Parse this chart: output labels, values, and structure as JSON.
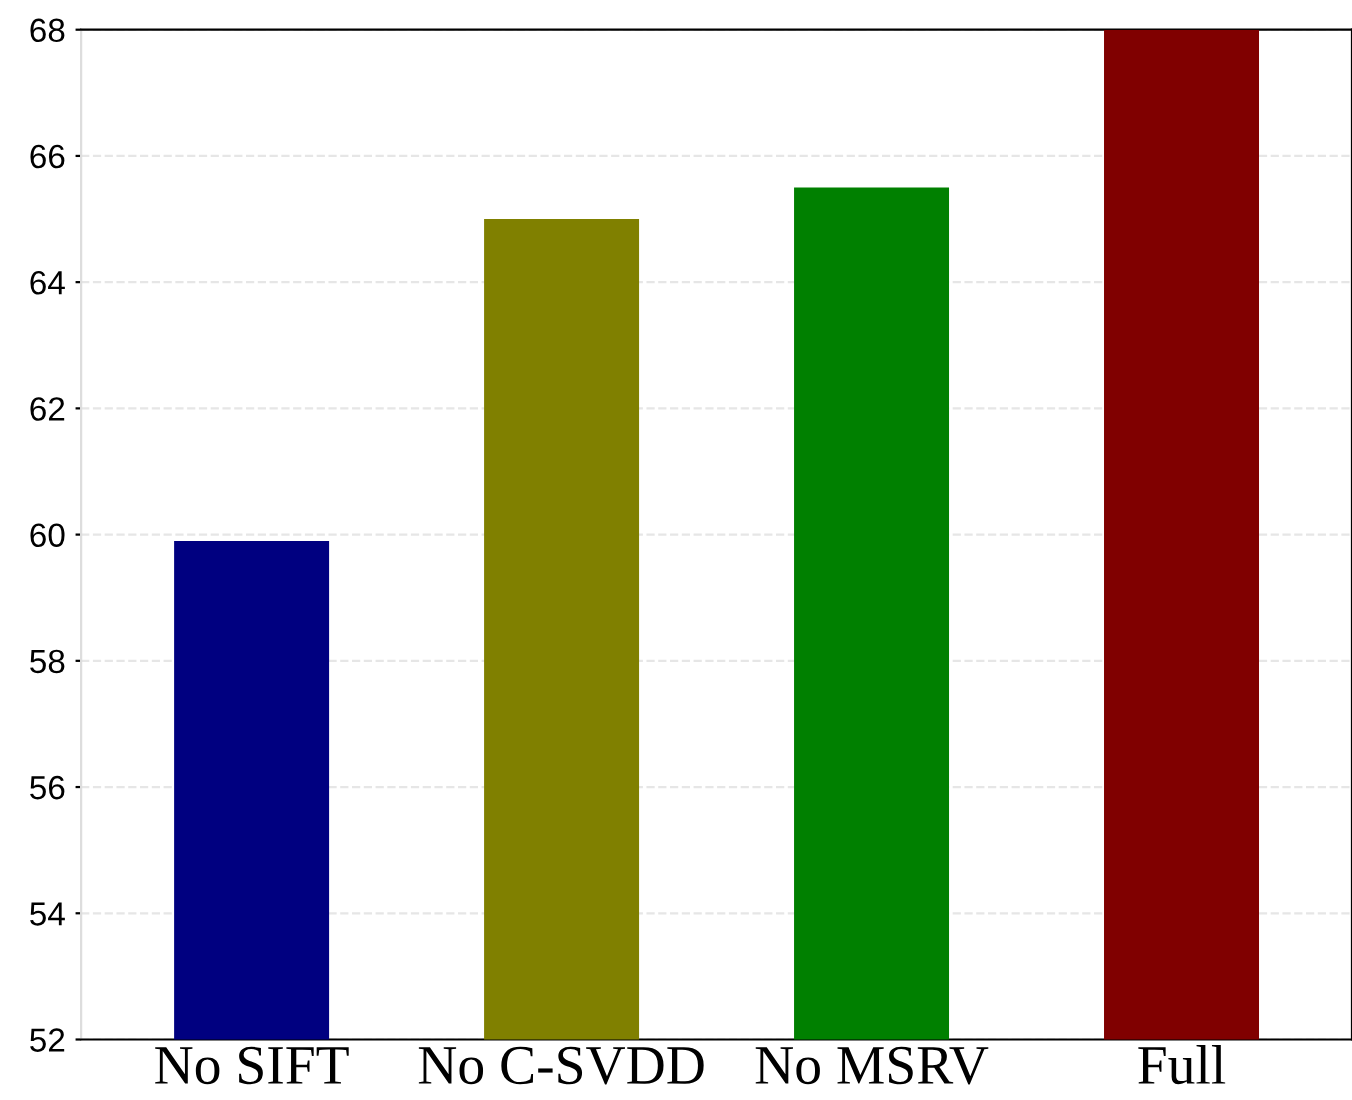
{
  "chart_data": {
    "type": "bar",
    "categories": [
      "No SIFT",
      "No C-SVDD",
      "No MSRV",
      "Full"
    ],
    "values": [
      59.9,
      65.0,
      65.5,
      68
    ],
    "colors": [
      "#000080",
      "#808000",
      "#008000",
      "#800000"
    ],
    "ylim": [
      52,
      68
    ],
    "yticks": [
      52,
      54,
      56,
      58,
      60,
      62,
      64,
      66,
      68
    ],
    "grid": "y"
  }
}
